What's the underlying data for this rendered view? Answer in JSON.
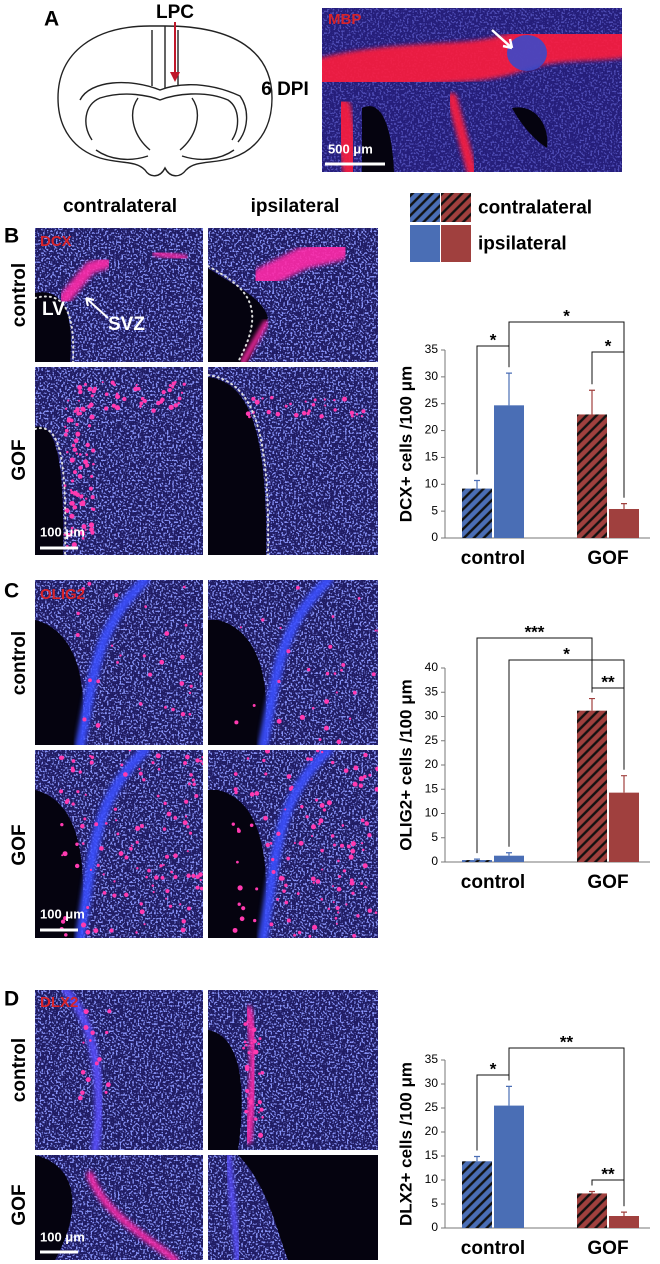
{
  "panels": {
    "A": {
      "letter": "A",
      "lpc": "LPC",
      "dpi": "6 DPI",
      "stain": "MBP",
      "scale": "500 μm"
    },
    "B": {
      "letter": "B",
      "columns": [
        "contralateral",
        "ipsilateral"
      ],
      "stain": "DCX",
      "rows": [
        "control",
        "GOF"
      ],
      "lv": "LV",
      "svz": "SVZ",
      "scale": "100 μm"
    },
    "C": {
      "letter": "C",
      "stain": "OLIG2",
      "rows": [
        "control",
        "GOF"
      ],
      "scale": "100 μm"
    },
    "D": {
      "letter": "D",
      "stain": "DLX2",
      "rows": [
        "control",
        "GOF"
      ],
      "scale": "100 μm"
    }
  },
  "chart_data": [
    {
      "type": "bar",
      "ylabel": "DCX+ cells /100 μm",
      "categories": [
        "control",
        "GOF"
      ],
      "series": [
        {
          "name": "contralateral",
          "colors": [
            "#4a6eb5",
            "#a0403e"
          ],
          "hatch": true,
          "values": [
            9.2,
            23
          ],
          "errors": [
            1.5,
            4.5
          ]
        },
        {
          "name": "ipsilateral",
          "colors": [
            "#4a6eb5",
            "#a0403e"
          ],
          "hatch": false,
          "values": [
            24.7,
            5.4
          ],
          "errors": [
            6,
            1
          ]
        }
      ],
      "ylim": [
        0,
        35
      ],
      "yticks": [
        0,
        5,
        10,
        15,
        20,
        25,
        30,
        35
      ],
      "annotations": [
        "*",
        "*",
        "*"
      ],
      "legend": true
    },
    {
      "type": "bar",
      "ylabel": "OLIG2+ cells /100 μm",
      "categories": [
        "control",
        "GOF"
      ],
      "series": [
        {
          "name": "contralateral",
          "colors": [
            "#4a6eb5",
            "#a0403e"
          ],
          "hatch": true,
          "values": [
            0.4,
            31.2
          ],
          "errors": [
            0.2,
            2.5
          ]
        },
        {
          "name": "ipsilateral",
          "colors": [
            "#4a6eb5",
            "#a0403e"
          ],
          "hatch": false,
          "values": [
            1.3,
            14.3
          ],
          "errors": [
            0.6,
            3.5
          ]
        }
      ],
      "ylim": [
        0,
        40
      ],
      "yticks": [
        0,
        5,
        10,
        15,
        20,
        25,
        30,
        35,
        40
      ],
      "annotations": [
        "***",
        "*",
        "**"
      ],
      "legend": false
    },
    {
      "type": "bar",
      "ylabel": "DLX2+ cells /100 μm",
      "categories": [
        "control",
        "GOF"
      ],
      "series": [
        {
          "name": "contralateral",
          "colors": [
            "#4a6eb5",
            "#a0403e"
          ],
          "hatch": true,
          "values": [
            13.9,
            7.2
          ],
          "errors": [
            1,
            0.4
          ]
        },
        {
          "name": "ipsilateral",
          "colors": [
            "#4a6eb5",
            "#a0403e"
          ],
          "hatch": false,
          "values": [
            25.5,
            2.5
          ],
          "errors": [
            4,
            0.8
          ]
        }
      ],
      "ylim": [
        0,
        35
      ],
      "yticks": [
        0,
        5,
        10,
        15,
        20,
        25,
        30,
        35
      ],
      "annotations": [
        "*",
        "**",
        "**"
      ],
      "legend": false
    }
  ]
}
